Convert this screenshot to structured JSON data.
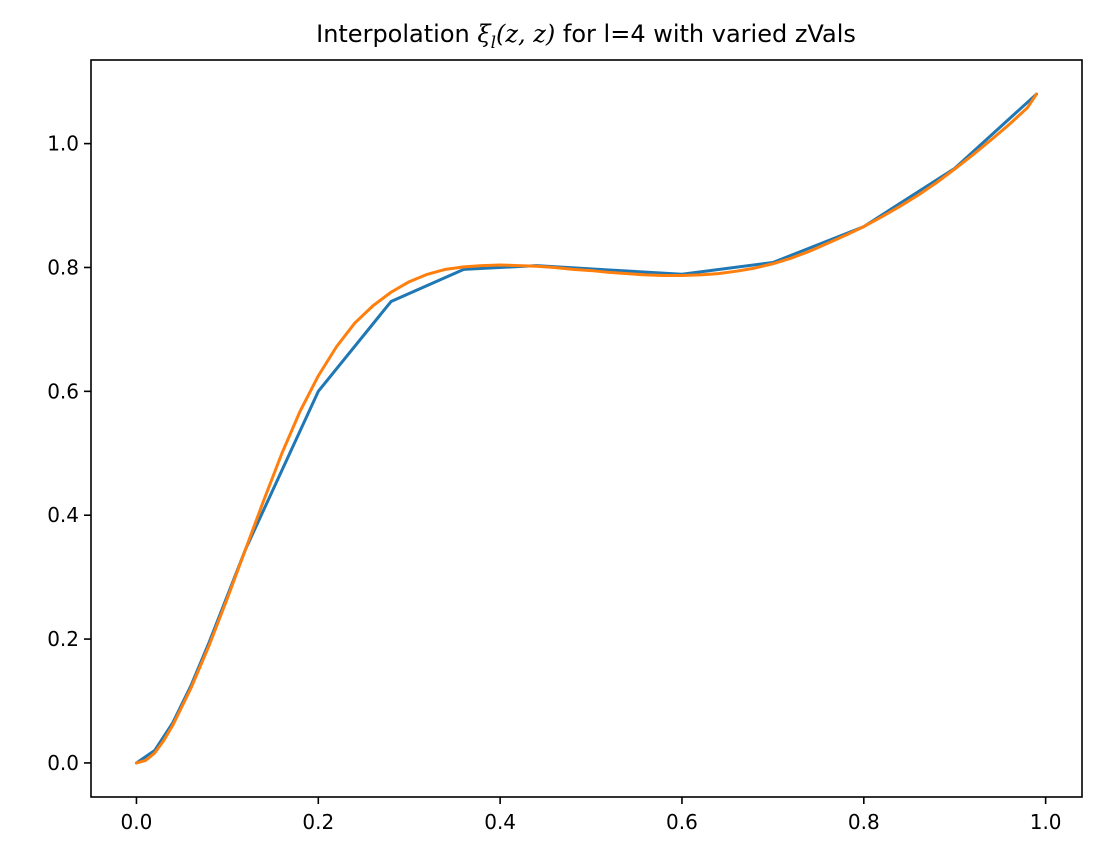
{
  "chart_data": {
    "type": "line",
    "title": {
      "prefix": "Interpolation ",
      "math_symbol": "ξ",
      "math_subscript": "l",
      "math_args": "(z, z)",
      "suffix": " for l=4 with varied zVals"
    },
    "xlabel": "",
    "ylabel": "",
    "xlim": [
      -0.05,
      1.04
    ],
    "ylim": [
      -0.055,
      1.135
    ],
    "xticks": [
      0.0,
      0.2,
      0.4,
      0.6,
      0.8,
      1.0
    ],
    "xtick_labels": [
      "0.0",
      "0.2",
      "0.4",
      "0.6",
      "0.8",
      "1.0"
    ],
    "yticks": [
      0.0,
      0.2,
      0.4,
      0.6,
      0.8,
      1.0
    ],
    "ytick_labels": [
      "0.0",
      "0.2",
      "0.4",
      "0.6",
      "0.8",
      "1.0"
    ],
    "grid": false,
    "legend": "none",
    "series": [
      {
        "color": "#1f77b4",
        "x": [
          0.0,
          0.02,
          0.04,
          0.06,
          0.08,
          0.12,
          0.2,
          0.28,
          0.36,
          0.44,
          0.52,
          0.6,
          0.7,
          0.8,
          0.9,
          0.99
        ],
        "y": [
          0.0,
          0.02,
          0.065,
          0.125,
          0.195,
          0.345,
          0.6,
          0.745,
          0.797,
          0.803,
          0.796,
          0.789,
          0.808,
          0.866,
          0.96,
          1.08
        ]
      },
      {
        "color": "#ff7f0e",
        "x": [
          0.0,
          0.01,
          0.02,
          0.03,
          0.04,
          0.06,
          0.08,
          0.1,
          0.12,
          0.14,
          0.16,
          0.18,
          0.2,
          0.22,
          0.24,
          0.26,
          0.28,
          0.3,
          0.32,
          0.34,
          0.36,
          0.38,
          0.4,
          0.42,
          0.44,
          0.46,
          0.48,
          0.5,
          0.52,
          0.54,
          0.56,
          0.58,
          0.6,
          0.62,
          0.64,
          0.66,
          0.68,
          0.7,
          0.72,
          0.74,
          0.76,
          0.78,
          0.8,
          0.82,
          0.84,
          0.86,
          0.88,
          0.9,
          0.92,
          0.94,
          0.96,
          0.98,
          0.99
        ],
        "y": [
          0.0,
          0.004,
          0.016,
          0.036,
          0.061,
          0.121,
          0.19,
          0.266,
          0.345,
          0.424,
          0.5,
          0.568,
          0.625,
          0.672,
          0.71,
          0.738,
          0.76,
          0.777,
          0.789,
          0.797,
          0.801,
          0.803,
          0.804,
          0.803,
          0.802,
          0.8,
          0.797,
          0.795,
          0.792,
          0.79,
          0.788,
          0.787,
          0.787,
          0.788,
          0.79,
          0.794,
          0.799,
          0.806,
          0.815,
          0.826,
          0.839,
          0.852,
          0.866,
          0.882,
          0.899,
          0.917,
          0.937,
          0.959,
          0.982,
          1.006,
          1.031,
          1.058,
          1.08
        ]
      }
    ]
  }
}
